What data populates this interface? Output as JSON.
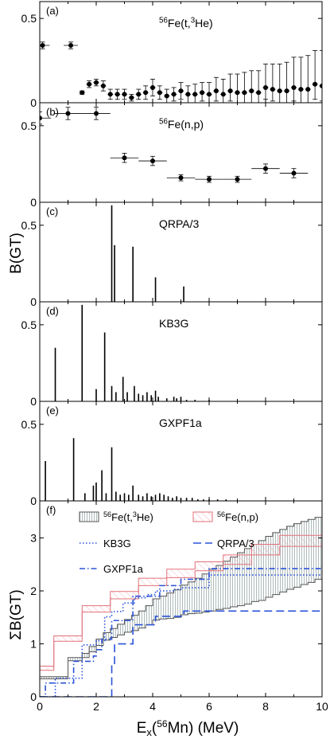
{
  "figure": {
    "ylabel_main": "B(GT)",
    "ylabel_sum": "ΣB(GT)",
    "xlabel": "E",
    "xlabel_sub": "x",
    "xlabel_paren_open": "(",
    "xlabel_sup": "56",
    "xlabel_rest": "Mn) (MeV)"
  },
  "colors": {
    "axis": "#000000",
    "exp_tHe3": "#555555",
    "exp_np": "#e0707a",
    "kb3g": "#2a52d8",
    "qrpa": "#2a52d8",
    "gxpf1a": "#2a52d8",
    "hatch_grey": "#9aa8a8",
    "hatch_red": "#f0a0a8"
  },
  "chart_data": [
    {
      "type": "scatter",
      "panel": "(a)",
      "label": "56Fe(t,3He)",
      "label_sup1": "56",
      "label_mid": "Fe(t,",
      "label_sup2": "3",
      "label_end": "He)",
      "ylim": [
        0,
        0.6
      ],
      "xlim": [
        0,
        10
      ],
      "yticks": [
        0,
        0.5
      ],
      "ytick_labels": [
        "0",
        "0.5"
      ],
      "points": [
        {
          "x": 0.1,
          "y": 0.34,
          "xerr": 0.25,
          "yerr_lo": 0.02,
          "yerr_hi": 0.02
        },
        {
          "x": 1.1,
          "y": 0.34,
          "xerr": 0.25,
          "yerr_lo": 0.02,
          "yerr_hi": 0.02
        },
        {
          "x": 1.5,
          "y": 0.06,
          "xerr": 0.1,
          "yerr_lo": 0.01,
          "yerr_hi": 0.01
        },
        {
          "x": 1.75,
          "y": 0.11,
          "xerr": 0.1,
          "yerr_lo": 0.02,
          "yerr_hi": 0.02
        },
        {
          "x": 2.0,
          "y": 0.12,
          "xerr": 0.1,
          "yerr_lo": 0.02,
          "yerr_hi": 0.02
        },
        {
          "x": 2.25,
          "y": 0.1,
          "xerr": 0.1,
          "yerr_lo": 0.03,
          "yerr_hi": 0.03
        },
        {
          "x": 2.5,
          "y": 0.05,
          "xerr": 0.1,
          "yerr_lo": 0.03,
          "yerr_hi": 0.03
        },
        {
          "x": 2.75,
          "y": 0.05,
          "xerr": 0.1,
          "yerr_lo": 0.03,
          "yerr_hi": 0.03
        },
        {
          "x": 3.0,
          "y": 0.05,
          "xerr": 0.1,
          "yerr_lo": 0.03,
          "yerr_hi": 0.03
        },
        {
          "x": 3.25,
          "y": 0.03,
          "xerr": 0.1,
          "yerr_lo": 0.02,
          "yerr_hi": 0.02
        },
        {
          "x": 3.5,
          "y": 0.05,
          "xerr": 0.1,
          "yerr_lo": 0.03,
          "yerr_hi": 0.03
        },
        {
          "x": 3.75,
          "y": 0.06,
          "xerr": 0.1,
          "yerr_lo": 0.04,
          "yerr_hi": 0.04
        },
        {
          "x": 4.0,
          "y": 0.09,
          "xerr": 0.1,
          "yerr_lo": 0.05,
          "yerr_hi": 0.05
        },
        {
          "x": 4.25,
          "y": 0.06,
          "xerr": 0.1,
          "yerr_lo": 0.04,
          "yerr_hi": 0.04
        },
        {
          "x": 4.5,
          "y": 0.04,
          "xerr": 0.1,
          "yerr_lo": 0.04,
          "yerr_hi": 0.04
        },
        {
          "x": 4.75,
          "y": 0.05,
          "xerr": 0.1,
          "yerr_lo": 0.04,
          "yerr_hi": 0.04
        },
        {
          "x": 5.0,
          "y": 0.07,
          "xerr": 0.1,
          "yerr_lo": 0.05,
          "yerr_hi": 0.05
        },
        {
          "x": 5.25,
          "y": 0.05,
          "xerr": 0.1,
          "yerr_lo": 0.05,
          "yerr_hi": 0.05
        },
        {
          "x": 5.5,
          "y": 0.05,
          "xerr": 0.1,
          "yerr_lo": 0.05,
          "yerr_hi": 0.06
        },
        {
          "x": 5.75,
          "y": 0.06,
          "xerr": 0.1,
          "yerr_lo": 0.05,
          "yerr_hi": 0.06
        },
        {
          "x": 6.0,
          "y": 0.05,
          "xerr": 0.1,
          "yerr_lo": 0.05,
          "yerr_hi": 0.07
        },
        {
          "x": 6.25,
          "y": 0.07,
          "xerr": 0.1,
          "yerr_lo": 0.06,
          "yerr_hi": 0.08
        },
        {
          "x": 6.5,
          "y": 0.05,
          "xerr": 0.1,
          "yerr_lo": 0.05,
          "yerr_hi": 0.09
        },
        {
          "x": 6.75,
          "y": 0.07,
          "xerr": 0.1,
          "yerr_lo": 0.06,
          "yerr_hi": 0.1
        },
        {
          "x": 7.0,
          "y": 0.06,
          "xerr": 0.1,
          "yerr_lo": 0.06,
          "yerr_hi": 0.11
        },
        {
          "x": 7.25,
          "y": 0.06,
          "xerr": 0.1,
          "yerr_lo": 0.06,
          "yerr_hi": 0.12
        },
        {
          "x": 7.5,
          "y": 0.07,
          "xerr": 0.1,
          "yerr_lo": 0.07,
          "yerr_hi": 0.12
        },
        {
          "x": 7.75,
          "y": 0.06,
          "xerr": 0.1,
          "yerr_lo": 0.06,
          "yerr_hi": 0.13
        },
        {
          "x": 8.0,
          "y": 0.09,
          "xerr": 0.1,
          "yerr_lo": 0.07,
          "yerr_hi": 0.14
        },
        {
          "x": 8.25,
          "y": 0.08,
          "xerr": 0.1,
          "yerr_lo": 0.07,
          "yerr_hi": 0.15
        },
        {
          "x": 8.5,
          "y": 0.07,
          "xerr": 0.1,
          "yerr_lo": 0.07,
          "yerr_hi": 0.16
        },
        {
          "x": 8.75,
          "y": 0.07,
          "xerr": 0.1,
          "yerr_lo": 0.07,
          "yerr_hi": 0.17
        },
        {
          "x": 9.0,
          "y": 0.09,
          "xerr": 0.1,
          "yerr_lo": 0.08,
          "yerr_hi": 0.18
        },
        {
          "x": 9.25,
          "y": 0.08,
          "xerr": 0.1,
          "yerr_lo": 0.08,
          "yerr_hi": 0.19
        },
        {
          "x": 9.5,
          "y": 0.08,
          "xerr": 0.1,
          "yerr_lo": 0.08,
          "yerr_hi": 0.2
        },
        {
          "x": 9.75,
          "y": 0.11,
          "xerr": 0.1,
          "yerr_lo": 0.09,
          "yerr_hi": 0.2
        },
        {
          "x": 10.0,
          "y": 0.1,
          "xerr": 0.1,
          "yerr_lo": 0.09,
          "yerr_hi": 0.21
        }
      ]
    },
    {
      "type": "scatter",
      "panel": "(b)",
      "label": "56Fe(n,p)",
      "label_sup1": "56",
      "label_mid": "Fe(n,p)",
      "ylim": [
        0,
        0.65
      ],
      "xlim": [
        0,
        10
      ],
      "yticks": [
        0,
        0.5
      ],
      "ytick_labels": [
        "0",
        "0.5"
      ],
      "points": [
        {
          "x": 0.0,
          "y": 0.55,
          "xerr": 0.4,
          "yerr_lo": 0.04,
          "yerr_hi": 0.04
        },
        {
          "x": 1.0,
          "y": 0.58,
          "xerr": 0.5,
          "yerr_lo": 0.04,
          "yerr_hi": 0.04
        },
        {
          "x": 2.0,
          "y": 0.58,
          "xerr": 0.5,
          "yerr_lo": 0.04,
          "yerr_hi": 0.04
        },
        {
          "x": 3.0,
          "y": 0.29,
          "xerr": 0.5,
          "yerr_lo": 0.03,
          "yerr_hi": 0.03
        },
        {
          "x": 4.0,
          "y": 0.27,
          "xerr": 0.5,
          "yerr_lo": 0.03,
          "yerr_hi": 0.03
        },
        {
          "x": 5.0,
          "y": 0.16,
          "xerr": 0.5,
          "yerr_lo": 0.02,
          "yerr_hi": 0.02
        },
        {
          "x": 6.0,
          "y": 0.15,
          "xerr": 0.5,
          "yerr_lo": 0.02,
          "yerr_hi": 0.02
        },
        {
          "x": 7.0,
          "y": 0.15,
          "xerr": 0.5,
          "yerr_lo": 0.02,
          "yerr_hi": 0.02
        },
        {
          "x": 8.0,
          "y": 0.22,
          "xerr": 0.5,
          "yerr_lo": 0.03,
          "yerr_hi": 0.03
        },
        {
          "x": 9.0,
          "y": 0.19,
          "xerr": 0.5,
          "yerr_lo": 0.03,
          "yerr_hi": 0.03
        }
      ]
    },
    {
      "type": "bar",
      "panel": "(c)",
      "label": "QRPA/3",
      "ylim": [
        0,
        0.65
      ],
      "xlim": [
        0,
        10
      ],
      "yticks": [
        0,
        0.5
      ],
      "ytick_labels": [
        "0",
        "0.5"
      ],
      "lines": [
        {
          "x": 2.55,
          "y": 0.63
        },
        {
          "x": 2.65,
          "y": 0.37
        },
        {
          "x": 3.3,
          "y": 0.36
        },
        {
          "x": 4.1,
          "y": 0.16
        },
        {
          "x": 5.1,
          "y": 0.1
        }
      ]
    },
    {
      "type": "bar",
      "panel": "(d)",
      "label": "KB3G",
      "ylim": [
        0,
        0.65
      ],
      "xlim": [
        0,
        10
      ],
      "yticks": [
        0,
        0.5
      ],
      "ytick_labels": [
        "0",
        "0.5"
      ],
      "lines": [
        {
          "x": 0.55,
          "y": 0.35
        },
        {
          "x": 1.5,
          "y": 0.63
        },
        {
          "x": 2.0,
          "y": 0.08
        },
        {
          "x": 2.3,
          "y": 0.45
        },
        {
          "x": 2.55,
          "y": 0.1
        },
        {
          "x": 2.7,
          "y": 0.06
        },
        {
          "x": 2.95,
          "y": 0.16
        },
        {
          "x": 3.1,
          "y": 0.06
        },
        {
          "x": 3.35,
          "y": 0.1
        },
        {
          "x": 3.5,
          "y": 0.05
        },
        {
          "x": 3.65,
          "y": 0.04
        },
        {
          "x": 3.8,
          "y": 0.06
        },
        {
          "x": 3.95,
          "y": 0.04
        },
        {
          "x": 4.1,
          "y": 0.07
        },
        {
          "x": 4.2,
          "y": 0.03
        },
        {
          "x": 4.5,
          "y": 0.02
        },
        {
          "x": 4.75,
          "y": 0.03
        },
        {
          "x": 4.85,
          "y": 0.02
        },
        {
          "x": 5.0,
          "y": 0.03
        },
        {
          "x": 5.2,
          "y": 0.01
        },
        {
          "x": 5.5,
          "y": 0.01
        },
        {
          "x": 6.0,
          "y": 0.01
        }
      ]
    },
    {
      "type": "bar",
      "panel": "(e)",
      "label": "GXPF1a",
      "ylim": [
        0,
        0.65
      ],
      "xlim": [
        0,
        10
      ],
      "yticks": [
        0,
        0.5
      ],
      "ytick_labels": [
        "0",
        "0.5"
      ],
      "lines": [
        {
          "x": 0.2,
          "y": 0.26
        },
        {
          "x": 1.2,
          "y": 0.41
        },
        {
          "x": 1.6,
          "y": 0.05
        },
        {
          "x": 1.9,
          "y": 0.1
        },
        {
          "x": 2.0,
          "y": 0.12
        },
        {
          "x": 2.2,
          "y": 0.2
        },
        {
          "x": 2.35,
          "y": 0.05
        },
        {
          "x": 2.55,
          "y": 0.35
        },
        {
          "x": 2.7,
          "y": 0.06
        },
        {
          "x": 2.85,
          "y": 0.04
        },
        {
          "x": 3.0,
          "y": 0.05
        },
        {
          "x": 3.15,
          "y": 0.04
        },
        {
          "x": 3.3,
          "y": 0.1
        },
        {
          "x": 3.5,
          "y": 0.04
        },
        {
          "x": 3.65,
          "y": 0.03
        },
        {
          "x": 3.8,
          "y": 0.05
        },
        {
          "x": 3.95,
          "y": 0.03
        },
        {
          "x": 4.1,
          "y": 0.04
        },
        {
          "x": 4.25,
          "y": 0.05
        },
        {
          "x": 4.4,
          "y": 0.04
        },
        {
          "x": 4.55,
          "y": 0.03
        },
        {
          "x": 4.7,
          "y": 0.02
        },
        {
          "x": 4.85,
          "y": 0.03
        },
        {
          "x": 5.0,
          "y": 0.02
        },
        {
          "x": 5.2,
          "y": 0.02
        },
        {
          "x": 5.4,
          "y": 0.02
        },
        {
          "x": 5.6,
          "y": 0.01
        },
        {
          "x": 5.8,
          "y": 0.01
        },
        {
          "x": 6.0,
          "y": 0.01
        },
        {
          "x": 6.3,
          "y": 0.01
        },
        {
          "x": 6.6,
          "y": 0.01
        }
      ]
    },
    {
      "type": "line",
      "panel": "(f)",
      "xlim": [
        0,
        10
      ],
      "ylim": [
        0,
        3.7
      ],
      "xticks": [
        0,
        2,
        4,
        6,
        8,
        10
      ],
      "xtick_labels": [
        "0",
        "2",
        "4",
        "6",
        "8",
        "10"
      ],
      "yticks": [
        0,
        1,
        2,
        3
      ],
      "ytick_labels": [
        "0",
        "1",
        "2",
        "3"
      ],
      "legend": [
        {
          "key": "tHe3",
          "pre": "",
          "sup": "56",
          "text": "Fe(t,",
          "sup2": "3",
          "text2": "He)"
        },
        {
          "key": "np",
          "pre": "",
          "sup": "56",
          "text": "Fe(n,p)",
          "sup2": "",
          "text2": ""
        },
        {
          "key": "kb3g",
          "pre": "KB3G",
          "sup": "",
          "text": "",
          "sup2": "",
          "text2": ""
        },
        {
          "key": "qrpa",
          "pre": "QRPA/3",
          "sup": "",
          "text": "",
          "sup2": "",
          "text2": ""
        },
        {
          "key": "gxpf1a",
          "pre": "GXPF1a",
          "sup": "",
          "text": "",
          "sup2": "",
          "text2": ""
        }
      ],
      "series": [
        {
          "key": "tHe3_lo",
          "x": [
            0,
            0.25,
            0.75,
            1.0,
            1.5,
            1.75,
            2.0,
            2.25,
            2.5,
            2.75,
            3.0,
            3.25,
            3.5,
            3.75,
            4.0,
            4.25,
            4.5,
            4.75,
            5.0,
            5.25,
            5.5,
            5.75,
            6.0,
            6.25,
            6.5,
            6.75,
            7.0,
            7.25,
            7.5,
            7.75,
            8.0,
            8.25,
            8.5,
            8.75,
            9.0,
            9.25,
            9.5,
            9.75,
            10.0
          ],
          "y": [
            0.34,
            0.34,
            0.34,
            0.68,
            0.74,
            0.85,
            0.97,
            1.07,
            1.12,
            1.17,
            1.22,
            1.25,
            1.3,
            1.36,
            1.45,
            1.47,
            1.48,
            1.5,
            1.55,
            1.57,
            1.58,
            1.6,
            1.62,
            1.65,
            1.67,
            1.7,
            1.72,
            1.75,
            1.8,
            1.82,
            1.88,
            1.93,
            1.98,
            2.03,
            2.07,
            2.12,
            2.16,
            2.22,
            2.28
          ]
        },
        {
          "key": "tHe3_hi",
          "x": [
            0,
            0.25,
            0.75,
            1.0,
            1.5,
            1.75,
            2.0,
            2.25,
            2.5,
            2.75,
            3.0,
            3.25,
            3.5,
            3.75,
            4.0,
            4.25,
            4.5,
            4.75,
            5.0,
            5.25,
            5.5,
            5.75,
            6.0,
            6.25,
            6.5,
            6.75,
            7.0,
            7.25,
            7.5,
            7.75,
            8.0,
            8.25,
            8.5,
            8.75,
            9.0,
            9.25,
            9.5,
            9.75,
            10.0
          ],
          "y": [
            0.38,
            0.38,
            0.38,
            0.74,
            0.82,
            0.95,
            1.09,
            1.21,
            1.29,
            1.37,
            1.46,
            1.54,
            1.62,
            1.72,
            1.85,
            1.9,
            1.96,
            2.02,
            2.11,
            2.17,
            2.24,
            2.32,
            2.41,
            2.48,
            2.56,
            2.64,
            2.72,
            2.8,
            2.88,
            2.95,
            3.03,
            3.1,
            3.16,
            3.22,
            3.27,
            3.31,
            3.35,
            3.39,
            3.44
          ]
        },
        {
          "key": "np_lo",
          "x": [
            0,
            0.5,
            1.5,
            2.5,
            3.5,
            4.5,
            5.5,
            6.5,
            7.5,
            8.5,
            9.5,
            10.0
          ],
          "y": [
            0.5,
            1.05,
            1.6,
            1.85,
            2.1,
            2.25,
            2.38,
            2.5,
            2.68,
            2.84,
            2.84,
            2.84
          ]
        },
        {
          "key": "np_hi",
          "x": [
            0,
            0.5,
            1.5,
            2.5,
            3.5,
            4.5,
            5.5,
            6.5,
            7.5,
            8.5,
            9.5,
            10.0
          ],
          "y": [
            0.58,
            1.15,
            1.72,
            1.99,
            2.24,
            2.41,
            2.55,
            2.68,
            2.88,
            3.05,
            3.05,
            3.05
          ]
        },
        {
          "key": "kb3g",
          "x": [
            0,
            0.55,
            1.5,
            2.0,
            2.3,
            2.55,
            2.95,
            3.35,
            3.8,
            4.1,
            4.75,
            5.0,
            6.0,
            10.0
          ],
          "y": [
            0.0,
            0.35,
            0.98,
            1.06,
            1.51,
            1.61,
            1.77,
            1.87,
            1.93,
            2.0,
            2.03,
            2.06,
            2.3,
            2.3
          ]
        },
        {
          "key": "qrpa",
          "x": [
            0,
            2.55,
            2.65,
            3.3,
            4.1,
            5.1,
            10.0
          ],
          "y": [
            0.0,
            0.63,
            1.0,
            1.36,
            1.52,
            1.62,
            1.62
          ]
        },
        {
          "key": "gxpf1a",
          "x": [
            0,
            0.2,
            1.2,
            1.9,
            2.0,
            2.2,
            2.55,
            3.3,
            4.25,
            5.0,
            6.0,
            10.0
          ],
          "y": [
            0.0,
            0.26,
            0.67,
            0.77,
            0.89,
            1.09,
            1.44,
            1.9,
            2.1,
            2.22,
            2.42,
            2.42
          ]
        }
      ]
    }
  ]
}
